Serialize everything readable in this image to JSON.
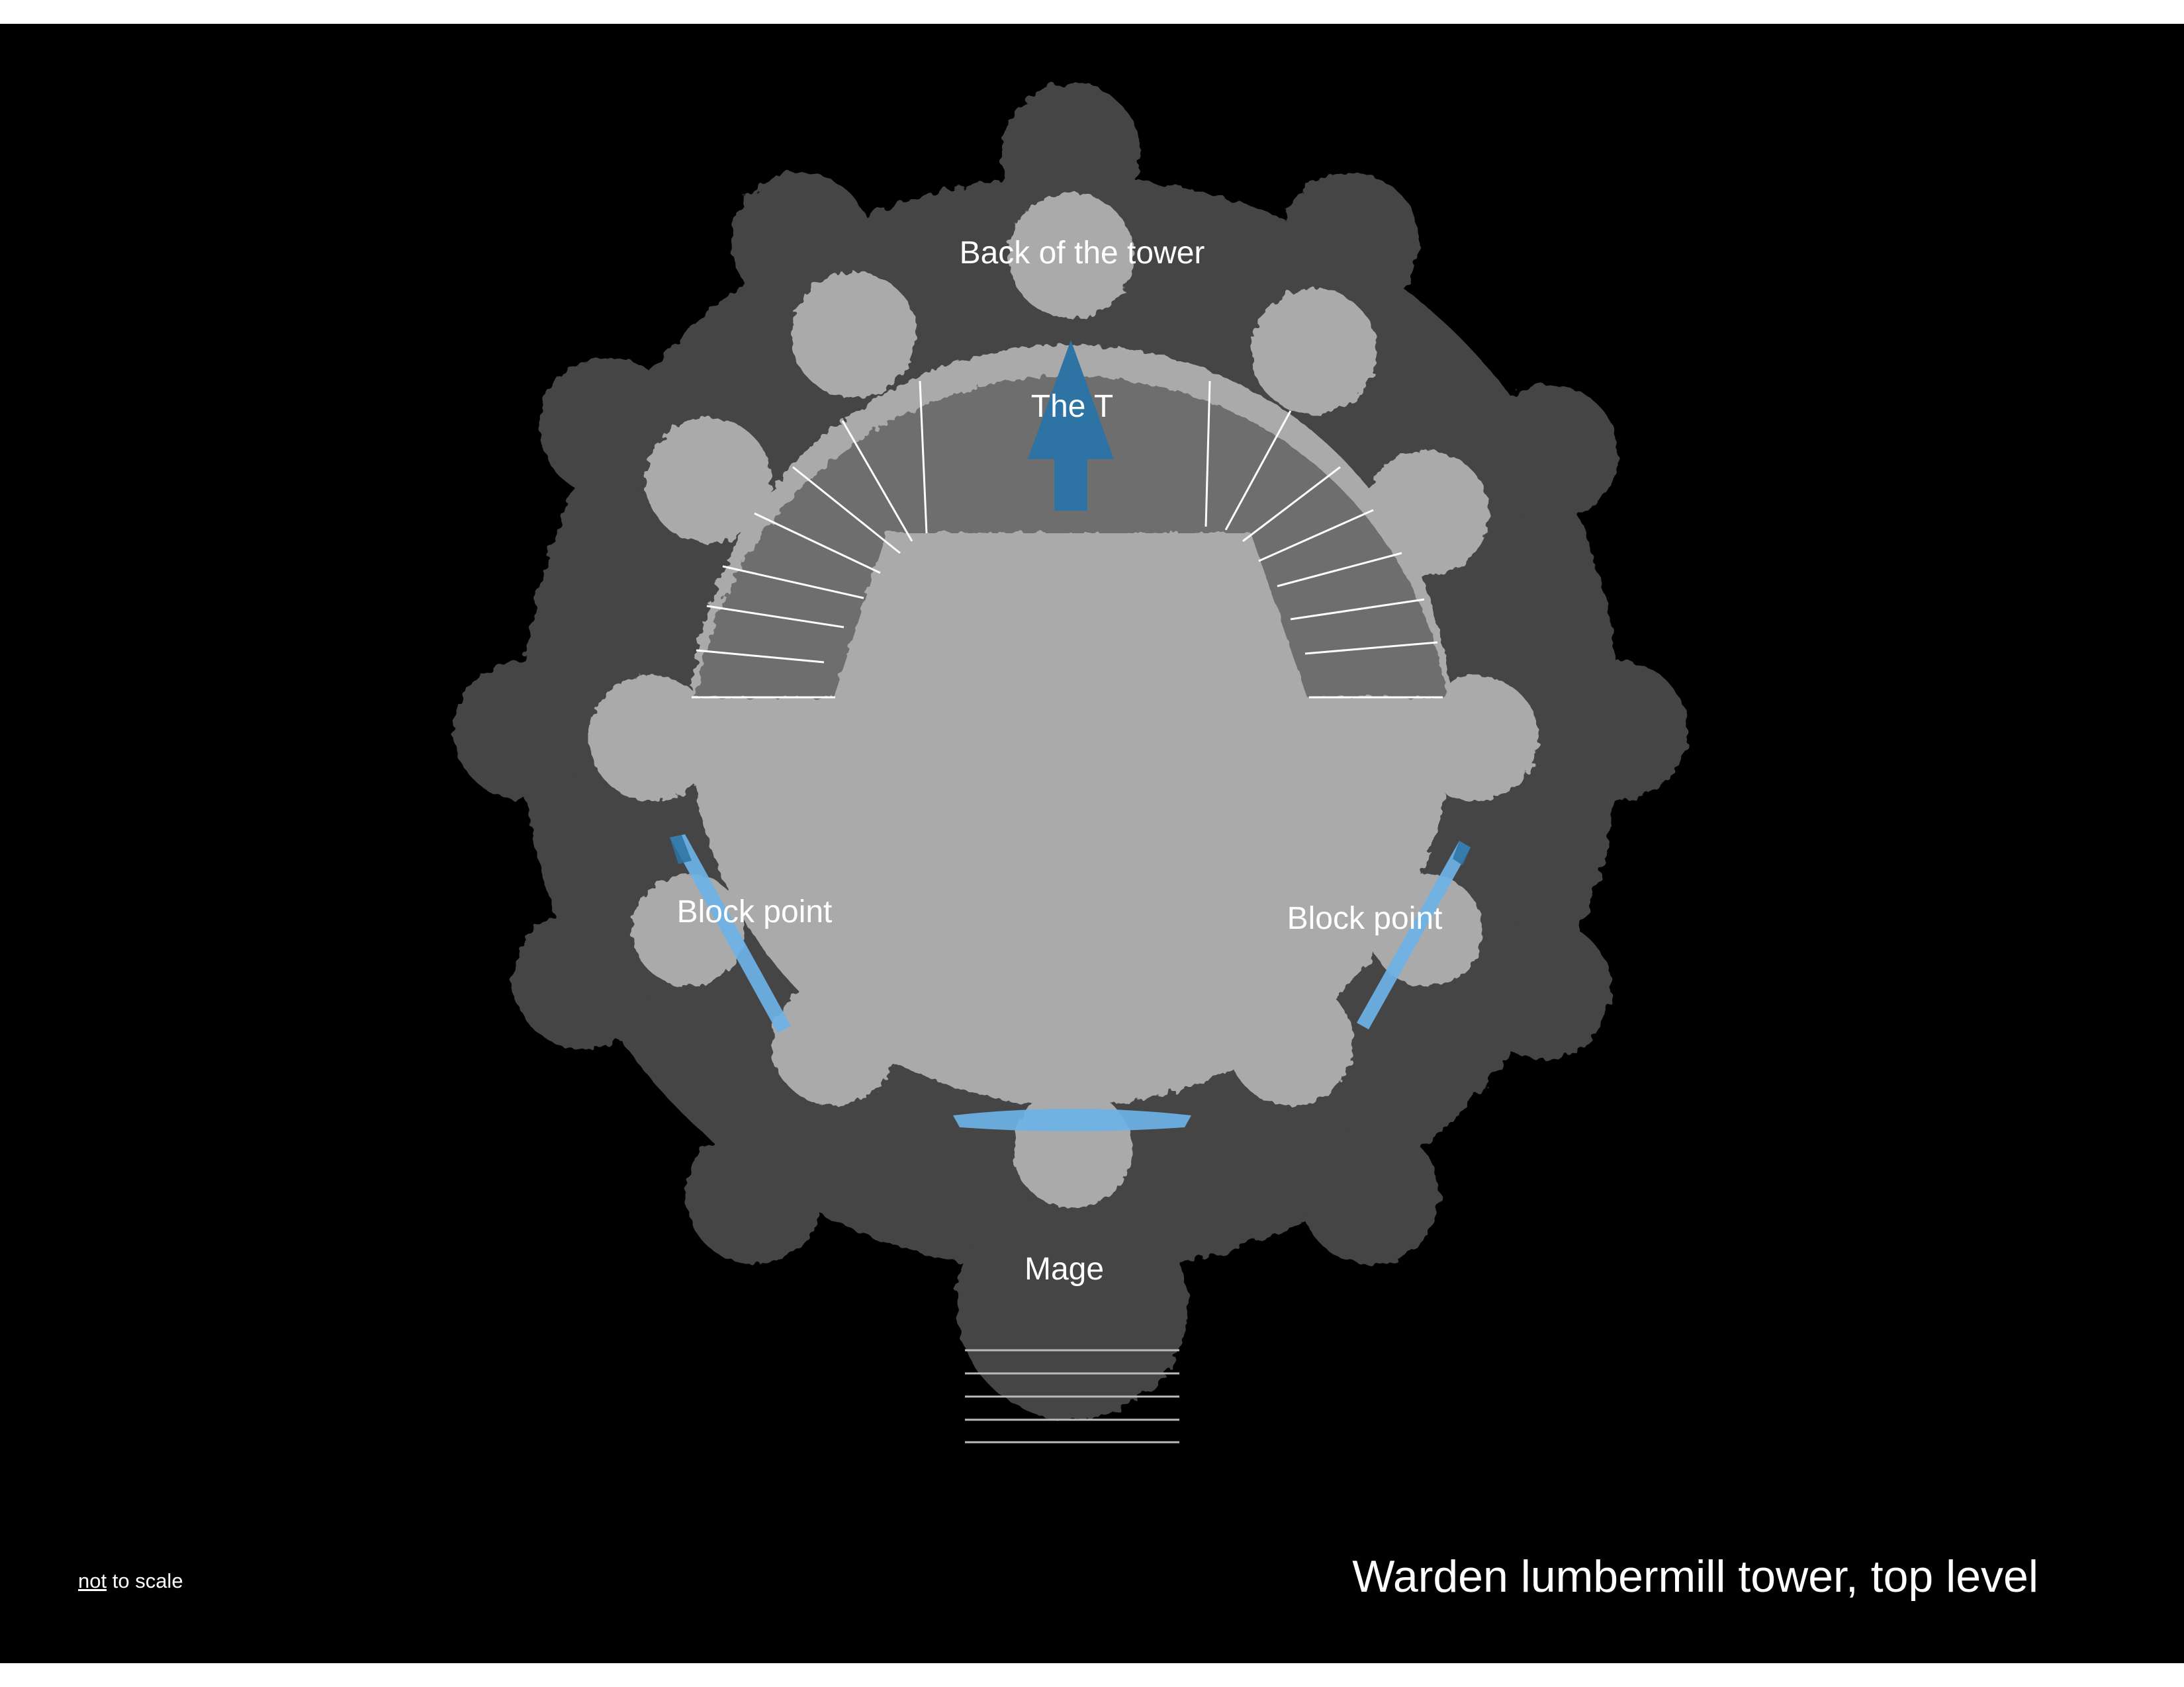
{
  "labels": {
    "back": "Back of the tower",
    "the_t": "The T",
    "block_left": "Block point",
    "block_right": "Block point",
    "mage": "Mage"
  },
  "caption": {
    "emphasis": "not",
    "rest": " to scale"
  },
  "title": "Warden lumbermill tower, top level",
  "colors": {
    "background": "#000000",
    "outer_ring": "#444444",
    "platform": "#aaaaaa",
    "stair_area": "#6e6e6e",
    "block_marker": "#6db3e8",
    "arrow": "#2d73a3"
  },
  "icons": {
    "arrow": "up-arrow-icon",
    "block_marker": "block-line-icon"
  }
}
